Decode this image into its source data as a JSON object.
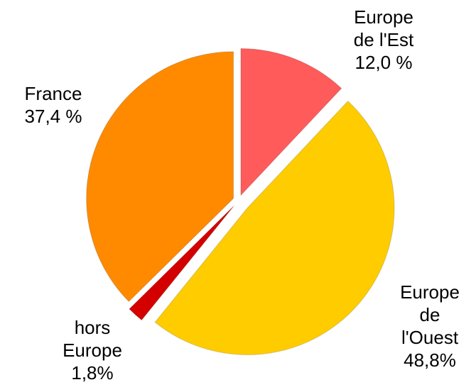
{
  "chart_data": {
    "type": "pie",
    "categories": [
      "Europe\nde l'Est",
      "Europe\nde\nl'Ouest",
      "hors\nEurope",
      "France"
    ],
    "values": [
      12.0,
      48.8,
      1.8,
      37.4
    ],
    "value_labels": [
      "12,0 %",
      "48,8%",
      "1,8%",
      "37,4 %"
    ],
    "colors": [
      "#ff5b5b",
      "#ffcc00",
      "#d40000",
      "#ff8a00"
    ]
  }
}
